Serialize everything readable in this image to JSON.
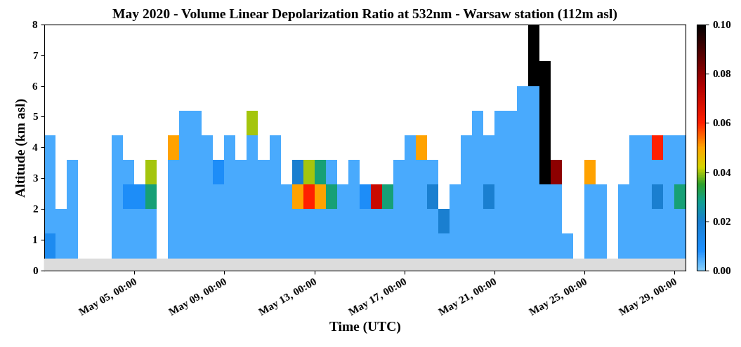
{
  "chart_data": {
    "type": "heatmap",
    "title": "May 2020 - Volume Linear Depolarization Ratio at 532nm - Warsaw station (112m asl)",
    "x_label": "Time (UTC)",
    "y_label": "Altitude (km asl)",
    "xlim": [
      1,
      29.5
    ],
    "ylim": [
      0,
      8
    ],
    "xticks": [
      {
        "value": 5,
        "label": "May 05, 00:00"
      },
      {
        "value": 9,
        "label": "May 09, 00:00"
      },
      {
        "value": 13,
        "label": "May 13, 00:00"
      },
      {
        "value": 17,
        "label": "May 17, 00:00"
      },
      {
        "value": 21,
        "label": "May 21, 00:00"
      },
      {
        "value": 25,
        "label": "May 25, 00:00"
      },
      {
        "value": 29,
        "label": "May 29, 00:00"
      }
    ],
    "yticks": [
      0,
      1,
      2,
      3,
      4,
      5,
      6,
      7,
      8
    ],
    "blind_zone": [
      0,
      0.4
    ],
    "x_edges": [
      1,
      1.5,
      2,
      2.5,
      3,
      3.5,
      4,
      4.5,
      5,
      5.5,
      6,
      6.5,
      7,
      7.5,
      8,
      8.5,
      9,
      9.5,
      10,
      10.5,
      11,
      11.5,
      12,
      12.5,
      13,
      13.5,
      14,
      14.5,
      15,
      15.5,
      16,
      16.5,
      17,
      17.5,
      18,
      18.5,
      19,
      19.5,
      20,
      20.5,
      21,
      21.5,
      22,
      22.5,
      23,
      23.5,
      24,
      24.5,
      25,
      25.5,
      26,
      26.5,
      27,
      27.5,
      28,
      28.5,
      29,
      29.5
    ],
    "y_edges": [
      0.4,
      1.2,
      2.0,
      2.8,
      3.6,
      4.4,
      5.2,
      6.0,
      6.8,
      7.6,
      8.0
    ],
    "cells": [
      [
        0.012,
        0.005,
        0.005,
        0.005,
        0.005,
        null,
        null,
        null,
        null,
        null
      ],
      [
        0.005,
        0.005,
        null,
        null,
        null,
        null,
        null,
        null,
        null,
        null
      ],
      [
        0.005,
        0.005,
        0.005,
        0.005,
        null,
        null,
        null,
        null,
        null,
        null
      ],
      [
        null,
        null,
        null,
        null,
        null,
        null,
        null,
        null,
        null,
        null
      ],
      [
        null,
        null,
        null,
        null,
        null,
        null,
        null,
        null,
        null,
        null
      ],
      [
        null,
        null,
        null,
        null,
        null,
        null,
        null,
        null,
        null,
        null
      ],
      [
        0.005,
        0.005,
        0.005,
        0.005,
        0.005,
        null,
        null,
        null,
        null,
        null
      ],
      [
        0.005,
        0.005,
        0.01,
        0.005,
        null,
        null,
        null,
        null,
        null,
        null
      ],
      [
        0.005,
        0.005,
        0.01,
        null,
        null,
        null,
        null,
        null,
        null,
        null
      ],
      [
        0.005,
        0.005,
        0.03,
        0.04,
        null,
        null,
        null,
        null,
        null,
        null
      ],
      [
        null,
        null,
        null,
        null,
        null,
        null,
        null,
        null,
        null,
        null
      ],
      [
        0.005,
        0.005,
        0.005,
        0.005,
        0.05,
        null,
        null,
        null,
        null,
        null
      ],
      [
        0.005,
        0.005,
        0.005,
        0.005,
        0.005,
        0.005,
        null,
        null,
        null,
        null
      ],
      [
        0.005,
        0.005,
        0.005,
        0.005,
        0.005,
        0.005,
        null,
        null,
        null,
        null
      ],
      [
        0.005,
        0.005,
        0.005,
        0.005,
        0.005,
        null,
        null,
        null,
        null,
        null
      ],
      [
        0.005,
        0.005,
        0.005,
        0.01,
        null,
        null,
        null,
        null,
        null,
        null
      ],
      [
        0.005,
        0.005,
        0.005,
        0.005,
        0.005,
        null,
        null,
        null,
        null,
        null
      ],
      [
        0.005,
        0.005,
        0.005,
        0.005,
        null,
        null,
        null,
        null,
        null,
        null
      ],
      [
        0.005,
        0.005,
        0.005,
        0.005,
        0.005,
        0.04,
        null,
        null,
        null,
        null
      ],
      [
        0.005,
        0.005,
        0.005,
        0.005,
        null,
        null,
        null,
        null,
        null,
        null
      ],
      [
        0.005,
        0.005,
        0.005,
        0.005,
        0.005,
        null,
        null,
        null,
        null,
        null
      ],
      [
        0.005,
        0.005,
        0.005,
        null,
        null,
        null,
        null,
        null,
        null,
        null
      ],
      [
        0.005,
        0.005,
        0.05,
        0.02,
        null,
        null,
        null,
        null,
        null,
        null
      ],
      [
        0.005,
        0.005,
        0.06,
        0.04,
        null,
        null,
        null,
        null,
        null,
        null
      ],
      [
        0.005,
        0.005,
        0.05,
        0.03,
        null,
        null,
        null,
        null,
        null,
        null
      ],
      [
        0.005,
        0.005,
        0.03,
        0.005,
        null,
        null,
        null,
        null,
        null,
        null
      ],
      [
        0.005,
        0.005,
        0.005,
        null,
        null,
        null,
        null,
        null,
        null,
        null
      ],
      [
        0.005,
        0.005,
        0.005,
        0.005,
        null,
        null,
        null,
        null,
        null,
        null
      ],
      [
        0.005,
        0.005,
        0.01,
        null,
        null,
        null,
        null,
        null,
        null,
        null
      ],
      [
        0.005,
        0.005,
        0.07,
        null,
        null,
        null,
        null,
        null,
        null,
        null
      ],
      [
        0.005,
        0.005,
        0.03,
        null,
        null,
        null,
        null,
        null,
        null,
        null
      ],
      [
        0.005,
        0.005,
        0.005,
        0.005,
        null,
        null,
        null,
        null,
        null,
        null
      ],
      [
        0.005,
        0.005,
        0.005,
        0.005,
        0.005,
        null,
        null,
        null,
        null,
        null
      ],
      [
        0.005,
        0.005,
        0.005,
        0.005,
        0.05,
        null,
        null,
        null,
        null,
        null
      ],
      [
        0.005,
        0.005,
        0.02,
        0.005,
        null,
        null,
        null,
        null,
        null,
        null
      ],
      [
        0.005,
        0.02,
        null,
        null,
        null,
        null,
        null,
        null,
        null,
        null
      ],
      [
        0.005,
        0.005,
        0.005,
        null,
        null,
        null,
        null,
        null,
        null,
        null
      ],
      [
        0.005,
        0.005,
        0.005,
        0.005,
        0.005,
        null,
        null,
        null,
        null,
        null
      ],
      [
        0.005,
        0.005,
        0.005,
        0.005,
        0.005,
        0.005,
        null,
        null,
        null,
        null
      ],
      [
        0.005,
        0.005,
        0.02,
        0.005,
        0.005,
        null,
        null,
        null,
        null,
        null
      ],
      [
        0.005,
        0.005,
        0.005,
        0.005,
        0.005,
        0.005,
        null,
        null,
        null,
        null
      ],
      [
        0.005,
        0.005,
        0.005,
        0.005,
        0.005,
        0.005,
        null,
        null,
        null,
        null
      ],
      [
        0.005,
        0.005,
        0.005,
        0.005,
        0.005,
        0.005,
        0.005,
        null,
        null,
        null
      ],
      [
        0.005,
        0.005,
        0.005,
        0.005,
        0.005,
        0.005,
        0.005,
        0.1,
        0.1,
        0.1
      ],
      [
        0.005,
        0.005,
        0.005,
        0.1,
        0.1,
        0.1,
        0.1,
        0.1,
        null,
        null
      ],
      [
        0.005,
        0.005,
        0.005,
        0.08,
        null,
        null,
        null,
        null,
        null,
        null
      ],
      [
        0.005,
        null,
        null,
        null,
        null,
        null,
        null,
        null,
        null,
        null
      ],
      [
        null,
        null,
        null,
        null,
        null,
        null,
        null,
        null,
        null,
        null
      ],
      [
        0.005,
        0.005,
        0.005,
        0.05,
        null,
        null,
        null,
        null,
        null,
        null
      ],
      [
        0.005,
        0.005,
        0.005,
        null,
        null,
        null,
        null,
        null,
        null,
        null
      ],
      [
        null,
        null,
        null,
        null,
        null,
        null,
        null,
        null,
        null,
        null
      ],
      [
        0.005,
        0.005,
        0.005,
        null,
        null,
        null,
        null,
        null,
        null,
        null
      ],
      [
        0.005,
        0.005,
        0.005,
        0.005,
        0.005,
        null,
        null,
        null,
        null,
        null
      ],
      [
        0.005,
        0.005,
        0.005,
        0.005,
        0.005,
        null,
        null,
        null,
        null,
        null
      ],
      [
        0.005,
        0.005,
        0.02,
        0.005,
        0.06,
        null,
        null,
        null,
        null,
        null
      ],
      [
        0.005,
        0.005,
        0.005,
        0.005,
        0.005,
        null,
        null,
        null,
        null,
        null
      ],
      [
        0.005,
        0.005,
        0.03,
        0.005,
        0.005,
        null,
        null,
        null,
        null,
        null
      ]
    ],
    "colorbar": {
      "range": [
        0.0,
        0.1
      ],
      "ticks": [
        {
          "value": 0.0,
          "label": "0.00"
        },
        {
          "value": 0.02,
          "label": "0.02"
        },
        {
          "value": 0.04,
          "label": "0.04"
        },
        {
          "value": 0.06,
          "label": "0.06"
        },
        {
          "value": 0.08,
          "label": "0.08"
        },
        {
          "value": 0.1,
          "label": "0.10"
        }
      ]
    }
  }
}
